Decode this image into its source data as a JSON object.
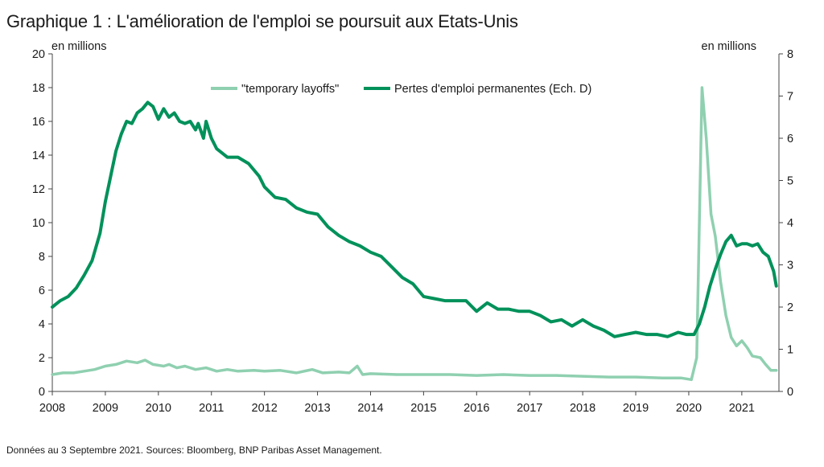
{
  "title": "Graphique 1 : L'amélioration de l'emploi se poursuit aux Etats-Unis",
  "source": "Données au 3 Septembre 2021. Sources: Bloomberg, BNP Paribas Asset Management.",
  "chart_data": {
    "type": "line",
    "left_axis_unit": "en millions",
    "right_axis_unit": "en millions",
    "xlim": [
      2008,
      2021.7
    ],
    "ylim_left": [
      0,
      20
    ],
    "ylim_right": [
      0,
      8
    ],
    "x_ticks": [
      "2008",
      "2009",
      "2010",
      "2011",
      "2012",
      "2013",
      "2014",
      "2015",
      "2016",
      "2017",
      "2018",
      "2019",
      "2020",
      "2021"
    ],
    "y_ticks_left": [
      "0",
      "2",
      "4",
      "6",
      "8",
      "10",
      "12",
      "14",
      "16",
      "18",
      "20"
    ],
    "y_ticks_right": [
      "0",
      "1",
      "2",
      "3",
      "4",
      "5",
      "6",
      "7",
      "8"
    ],
    "grid": false,
    "legend_position": "top-center",
    "series": [
      {
        "name": "\"temporary layoffs\"",
        "axis": "left",
        "color": "#8fd0b0",
        "points": [
          [
            2008.0,
            1.0
          ],
          [
            2008.2,
            1.1
          ],
          [
            2008.4,
            1.1
          ],
          [
            2008.6,
            1.2
          ],
          [
            2008.8,
            1.3
          ],
          [
            2009.0,
            1.5
          ],
          [
            2009.2,
            1.6
          ],
          [
            2009.4,
            1.8
          ],
          [
            2009.6,
            1.7
          ],
          [
            2009.75,
            1.85
          ],
          [
            2009.9,
            1.6
          ],
          [
            2010.1,
            1.5
          ],
          [
            2010.2,
            1.6
          ],
          [
            2010.35,
            1.4
          ],
          [
            2010.5,
            1.5
          ],
          [
            2010.7,
            1.3
          ],
          [
            2010.9,
            1.4
          ],
          [
            2011.1,
            1.2
          ],
          [
            2011.3,
            1.3
          ],
          [
            2011.5,
            1.2
          ],
          [
            2011.8,
            1.25
          ],
          [
            2012.0,
            1.2
          ],
          [
            2012.3,
            1.25
          ],
          [
            2012.6,
            1.1
          ],
          [
            2012.9,
            1.3
          ],
          [
            2013.1,
            1.1
          ],
          [
            2013.4,
            1.15
          ],
          [
            2013.6,
            1.1
          ],
          [
            2013.75,
            1.5
          ],
          [
            2013.85,
            1.0
          ],
          [
            2014.0,
            1.05
          ],
          [
            2014.5,
            1.0
          ],
          [
            2015.0,
            1.0
          ],
          [
            2015.5,
            1.0
          ],
          [
            2016.0,
            0.95
          ],
          [
            2016.5,
            1.0
          ],
          [
            2017.0,
            0.95
          ],
          [
            2017.5,
            0.95
          ],
          [
            2018.0,
            0.9
          ],
          [
            2018.5,
            0.85
          ],
          [
            2019.0,
            0.85
          ],
          [
            2019.5,
            0.8
          ],
          [
            2019.85,
            0.8
          ],
          [
            2020.05,
            0.7
          ],
          [
            2020.15,
            2.0
          ],
          [
            2020.25,
            18.0
          ],
          [
            2020.33,
            15.0
          ],
          [
            2020.42,
            10.5
          ],
          [
            2020.5,
            9.2
          ],
          [
            2020.6,
            6.5
          ],
          [
            2020.7,
            4.5
          ],
          [
            2020.8,
            3.2
          ],
          [
            2020.9,
            2.7
          ],
          [
            2021.0,
            3.0
          ],
          [
            2021.1,
            2.6
          ],
          [
            2021.2,
            2.1
          ],
          [
            2021.35,
            2.0
          ],
          [
            2021.45,
            1.6
          ],
          [
            2021.55,
            1.25
          ],
          [
            2021.65,
            1.25
          ]
        ]
      },
      {
        "name": "Pertes d'emploi permanentes (Ech. D)",
        "axis": "right",
        "color": "#00915a",
        "points": [
          [
            2008.0,
            2.0
          ],
          [
            2008.15,
            2.15
          ],
          [
            2008.3,
            2.25
          ],
          [
            2008.45,
            2.45
          ],
          [
            2008.6,
            2.75
          ],
          [
            2008.75,
            3.1
          ],
          [
            2008.9,
            3.75
          ],
          [
            2009.0,
            4.5
          ],
          [
            2009.1,
            5.1
          ],
          [
            2009.2,
            5.7
          ],
          [
            2009.3,
            6.1
          ],
          [
            2009.4,
            6.4
          ],
          [
            2009.5,
            6.35
          ],
          [
            2009.6,
            6.6
          ],
          [
            2009.7,
            6.7
          ],
          [
            2009.8,
            6.85
          ],
          [
            2009.9,
            6.75
          ],
          [
            2010.0,
            6.45
          ],
          [
            2010.1,
            6.7
          ],
          [
            2010.2,
            6.5
          ],
          [
            2010.3,
            6.6
          ],
          [
            2010.4,
            6.4
          ],
          [
            2010.5,
            6.35
          ],
          [
            2010.6,
            6.4
          ],
          [
            2010.7,
            6.2
          ],
          [
            2010.75,
            6.35
          ],
          [
            2010.85,
            6.0
          ],
          [
            2010.9,
            6.4
          ],
          [
            2011.0,
            6.0
          ],
          [
            2011.1,
            5.75
          ],
          [
            2011.3,
            5.55
          ],
          [
            2011.5,
            5.55
          ],
          [
            2011.7,
            5.4
          ],
          [
            2011.9,
            5.1
          ],
          [
            2012.0,
            4.85
          ],
          [
            2012.2,
            4.6
          ],
          [
            2012.4,
            4.55
          ],
          [
            2012.6,
            4.35
          ],
          [
            2012.8,
            4.25
          ],
          [
            2013.0,
            4.2
          ],
          [
            2013.2,
            3.9
          ],
          [
            2013.4,
            3.7
          ],
          [
            2013.6,
            3.55
          ],
          [
            2013.8,
            3.45
          ],
          [
            2014.0,
            3.3
          ],
          [
            2014.2,
            3.2
          ],
          [
            2014.4,
            2.95
          ],
          [
            2014.6,
            2.7
          ],
          [
            2014.8,
            2.55
          ],
          [
            2015.0,
            2.25
          ],
          [
            2015.2,
            2.2
          ],
          [
            2015.4,
            2.15
          ],
          [
            2015.6,
            2.15
          ],
          [
            2015.8,
            2.15
          ],
          [
            2016.0,
            1.9
          ],
          [
            2016.2,
            2.1
          ],
          [
            2016.4,
            1.95
          ],
          [
            2016.6,
            1.95
          ],
          [
            2016.8,
            1.9
          ],
          [
            2017.0,
            1.9
          ],
          [
            2017.2,
            1.8
          ],
          [
            2017.4,
            1.65
          ],
          [
            2017.6,
            1.7
          ],
          [
            2017.8,
            1.55
          ],
          [
            2018.0,
            1.7
          ],
          [
            2018.2,
            1.55
          ],
          [
            2018.4,
            1.45
          ],
          [
            2018.6,
            1.3
          ],
          [
            2018.8,
            1.35
          ],
          [
            2019.0,
            1.4
          ],
          [
            2019.2,
            1.35
          ],
          [
            2019.4,
            1.35
          ],
          [
            2019.6,
            1.3
          ],
          [
            2019.8,
            1.4
          ],
          [
            2019.95,
            1.35
          ],
          [
            2020.1,
            1.35
          ],
          [
            2020.2,
            1.6
          ],
          [
            2020.3,
            2.0
          ],
          [
            2020.4,
            2.5
          ],
          [
            2020.5,
            2.9
          ],
          [
            2020.6,
            3.25
          ],
          [
            2020.7,
            3.55
          ],
          [
            2020.8,
            3.7
          ],
          [
            2020.9,
            3.45
          ],
          [
            2021.0,
            3.5
          ],
          [
            2021.1,
            3.5
          ],
          [
            2021.2,
            3.45
          ],
          [
            2021.3,
            3.5
          ],
          [
            2021.4,
            3.3
          ],
          [
            2021.5,
            3.2
          ],
          [
            2021.6,
            2.85
          ],
          [
            2021.65,
            2.5
          ]
        ]
      }
    ]
  }
}
